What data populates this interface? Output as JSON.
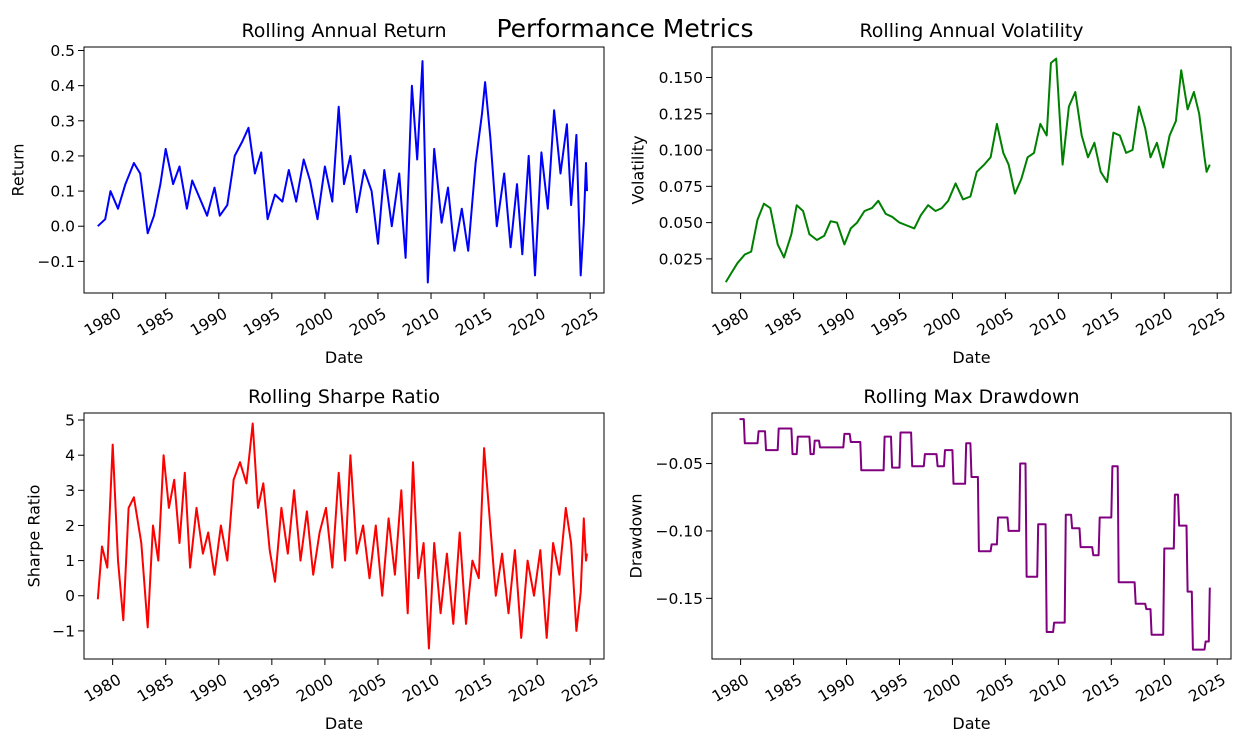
{
  "figure": {
    "title": "Performance Metrics"
  },
  "chart_data": [
    {
      "type": "line",
      "title": "Rolling Annual Return",
      "xlabel": "Date",
      "ylabel": "Return",
      "color": "#0000ff",
      "xlim": [
        1977.3,
        2026.3
      ],
      "ylim": [
        -0.19,
        0.51
      ],
      "xticks": [
        "1980",
        "1985",
        "1990",
        "1995",
        "2000",
        "2005",
        "2010",
        "2015",
        "2020",
        "2025"
      ],
      "yticks": [
        "−0.1",
        "0.0",
        "0.1",
        "0.2",
        "0.3",
        "0.4",
        "0.5"
      ],
      "series": [
        {
          "x": [
            1978.6,
            1979.3,
            1979.8,
            1980.5,
            1981.2,
            1982.0,
            1982.6,
            1983.3,
            1983.9,
            1984.5,
            1985.0,
            1985.7,
            1986.3,
            1987.0,
            1987.5,
            1988.2,
            1988.9,
            1989.6,
            1990.1,
            1990.8,
            1991.5,
            1992.2,
            1992.8,
            1993.4,
            1994.0,
            1994.6,
            1995.3,
            1996.0,
            1996.6,
            1997.3,
            1998.0,
            1998.6,
            1999.3,
            2000.0,
            2000.7,
            2001.3,
            2001.8,
            2002.4,
            2003.0,
            2003.7,
            2004.4,
            2005.0,
            2005.6,
            2006.3,
            2007.0,
            2007.6,
            2008.2,
            2008.7,
            2009.2,
            2009.7,
            2010.3,
            2011.0,
            2011.6,
            2012.2,
            2012.9,
            2013.5,
            2014.2,
            2014.8,
            2015.1,
            2015.6,
            2016.2,
            2016.9,
            2017.5,
            2018.1,
            2018.6,
            2019.2,
            2019.8,
            2020.4,
            2021.0,
            2021.6,
            2022.2,
            2022.8,
            2023.2,
            2023.7,
            2024.1,
            2024.4,
            2024.6,
            2024.7
          ],
          "y": [
            0.0,
            0.02,
            0.1,
            0.05,
            0.12,
            0.18,
            0.15,
            -0.02,
            0.03,
            0.12,
            0.22,
            0.12,
            0.17,
            0.05,
            0.13,
            0.08,
            0.03,
            0.11,
            0.03,
            0.06,
            0.2,
            0.24,
            0.28,
            0.15,
            0.21,
            0.02,
            0.09,
            0.07,
            0.16,
            0.07,
            0.19,
            0.13,
            0.02,
            0.17,
            0.07,
            0.34,
            0.12,
            0.2,
            0.04,
            0.16,
            0.1,
            -0.05,
            0.16,
            0.0,
            0.15,
            -0.09,
            0.4,
            0.19,
            0.47,
            -0.16,
            0.22,
            0.01,
            0.11,
            -0.07,
            0.05,
            -0.07,
            0.18,
            0.32,
            0.41,
            0.25,
            0.0,
            0.15,
            -0.06,
            0.12,
            -0.08,
            0.2,
            -0.14,
            0.21,
            0.05,
            0.33,
            0.15,
            0.29,
            0.06,
            0.26,
            -0.14,
            0.01,
            0.18,
            0.1
          ]
        }
      ]
    },
    {
      "type": "line",
      "title": "Rolling Annual Volatility",
      "xlabel": "Date",
      "ylabel": "Volatility",
      "color": "#008000",
      "xlim": [
        1977.3,
        2026.3
      ],
      "ylim": [
        0.0015,
        0.171
      ],
      "xticks": [
        "1980",
        "1985",
        "1990",
        "1995",
        "2000",
        "2005",
        "2010",
        "2015",
        "2020",
        "2025"
      ],
      "yticks": [
        "0.025",
        "0.050",
        "0.075",
        "0.100",
        "0.125",
        "0.150"
      ],
      "series": [
        {
          "x": [
            1978.6,
            1979.1,
            1979.7,
            1980.4,
            1981.0,
            1981.6,
            1982.2,
            1982.8,
            1983.5,
            1984.1,
            1984.8,
            1985.3,
            1985.9,
            1986.5,
            1987.2,
            1987.9,
            1988.5,
            1989.1,
            1989.8,
            1990.4,
            1991.0,
            1991.7,
            1992.4,
            1993.0,
            1993.7,
            1994.3,
            1995.0,
            1995.7,
            1996.4,
            1997.0,
            1997.7,
            1998.4,
            1999.0,
            1999.6,
            2000.3,
            2001.0,
            2001.7,
            2002.3,
            2003.0,
            2003.6,
            2004.2,
            2004.8,
            2005.3,
            2005.9,
            2006.5,
            2007.1,
            2007.7,
            2008.3,
            2008.9,
            2009.3,
            2009.8,
            2010.4,
            2011.0,
            2011.6,
            2012.2,
            2012.8,
            2013.4,
            2014.0,
            2014.6,
            2015.2,
            2015.8,
            2016.4,
            2017.0,
            2017.6,
            2018.2,
            2018.7,
            2019.3,
            2019.9,
            2020.5,
            2021.1,
            2021.6,
            2022.2,
            2022.8,
            2023.3,
            2023.8,
            2024.0,
            2024.3
          ],
          "y": [
            0.009,
            0.015,
            0.022,
            0.028,
            0.03,
            0.052,
            0.063,
            0.06,
            0.035,
            0.026,
            0.042,
            0.062,
            0.058,
            0.042,
            0.038,
            0.041,
            0.051,
            0.05,
            0.035,
            0.046,
            0.05,
            0.058,
            0.06,
            0.065,
            0.056,
            0.054,
            0.05,
            0.048,
            0.046,
            0.055,
            0.062,
            0.058,
            0.06,
            0.065,
            0.077,
            0.066,
            0.068,
            0.085,
            0.09,
            0.095,
            0.118,
            0.098,
            0.09,
            0.07,
            0.08,
            0.095,
            0.098,
            0.118,
            0.11,
            0.16,
            0.163,
            0.09,
            0.13,
            0.14,
            0.11,
            0.095,
            0.105,
            0.085,
            0.078,
            0.112,
            0.11,
            0.098,
            0.1,
            0.13,
            0.115,
            0.095,
            0.105,
            0.088,
            0.11,
            0.12,
            0.155,
            0.128,
            0.14,
            0.125,
            0.095,
            0.085,
            0.09
          ]
        }
      ]
    },
    {
      "type": "line",
      "title": "Rolling Sharpe Ratio",
      "xlabel": "Date",
      "ylabel": "Sharpe Ratio",
      "color": "#ff0000",
      "xlim": [
        1977.3,
        2026.3
      ],
      "ylim": [
        -1.8,
        5.2
      ],
      "xticks": [
        "1980",
        "1985",
        "1990",
        "1995",
        "2000",
        "2005",
        "2010",
        "2015",
        "2020",
        "2025"
      ],
      "yticks": [
        "−1",
        "0",
        "1",
        "2",
        "3",
        "4",
        "5"
      ],
      "series": [
        {
          "x": [
            1978.6,
            1979.0,
            1979.5,
            1980.0,
            1980.5,
            1981.0,
            1981.5,
            1982.0,
            1982.7,
            1983.3,
            1983.8,
            1984.3,
            1984.8,
            1985.3,
            1985.8,
            1986.3,
            1986.8,
            1987.3,
            1987.9,
            1988.5,
            1989.0,
            1989.6,
            1990.2,
            1990.8,
            1991.4,
            1992.0,
            1992.6,
            1993.2,
            1993.7,
            1994.2,
            1994.8,
            1995.3,
            1995.9,
            1996.5,
            1997.1,
            1997.7,
            1998.3,
            1998.9,
            1999.5,
            2000.1,
            2000.7,
            2001.3,
            2001.9,
            2002.4,
            2003.0,
            2003.6,
            2004.2,
            2004.8,
            2005.4,
            2006.0,
            2006.6,
            2007.2,
            2007.8,
            2008.3,
            2008.8,
            2009.3,
            2009.8,
            2010.3,
            2010.9,
            2011.5,
            2012.1,
            2012.7,
            2013.3,
            2013.9,
            2014.5,
            2015.0,
            2015.5,
            2016.1,
            2016.7,
            2017.3,
            2017.9,
            2018.5,
            2019.1,
            2019.7,
            2020.3,
            2020.9,
            2021.5,
            2022.1,
            2022.7,
            2023.2,
            2023.7,
            2024.1,
            2024.4,
            2024.6,
            2024.7
          ],
          "y": [
            -0.1,
            1.4,
            0.8,
            4.3,
            1.0,
            -0.7,
            2.5,
            2.8,
            1.5,
            -0.9,
            2.0,
            1.0,
            4.0,
            2.5,
            3.3,
            1.5,
            3.5,
            0.8,
            2.5,
            1.2,
            1.8,
            0.6,
            2.0,
            1.0,
            3.3,
            3.8,
            3.2,
            4.9,
            2.5,
            3.2,
            1.3,
            0.4,
            2.5,
            1.2,
            3.0,
            1.0,
            2.4,
            0.6,
            1.8,
            2.5,
            0.8,
            3.5,
            1.0,
            4.0,
            1.2,
            2.0,
            0.5,
            2.0,
            0.0,
            2.2,
            0.6,
            3.0,
            -0.5,
            3.8,
            0.5,
            1.5,
            -1.5,
            1.5,
            -0.5,
            1.2,
            -0.8,
            1.8,
            -0.8,
            1.0,
            0.5,
            4.2,
            2.3,
            0.0,
            1.2,
            -0.5,
            1.3,
            -1.2,
            1.0,
            0.0,
            1.3,
            -1.2,
            1.5,
            0.6,
            2.5,
            1.5,
            -1.0,
            0.1,
            2.2,
            1.0,
            1.2
          ]
        }
      ]
    },
    {
      "type": "line",
      "title": "Rolling Max Drawdown",
      "xlabel": "Date",
      "ylabel": "Drawdown",
      "color": "#800080",
      "xlim": [
        1977.3,
        2026.3
      ],
      "ylim": [
        -0.195,
        -0.0125
      ],
      "xticks": [
        "1980",
        "1985",
        "1990",
        "1995",
        "2000",
        "2005",
        "2010",
        "2015",
        "2020",
        "2025"
      ],
      "yticks": [
        "−0.15",
        "−0.10",
        "−0.05"
      ],
      "series": [
        {
          "x": [
            1979.9,
            1980.3,
            1980.4,
            1981.6,
            1981.7,
            1982.3,
            1982.4,
            1983.5,
            1983.6,
            1984.8,
            1984.9,
            1985.3,
            1985.4,
            1986.5,
            1986.6,
            1986.9,
            1987.0,
            1987.4,
            1987.5,
            1989.7,
            1989.8,
            1990.3,
            1990.4,
            1991.3,
            1991.4,
            1993.5,
            1993.6,
            1994.2,
            1994.3,
            1995.0,
            1995.1,
            1996.1,
            1996.2,
            1997.3,
            1997.4,
            1998.5,
            1998.6,
            1999.2,
            1999.3,
            2000.0,
            2000.1,
            2001.2,
            2001.3,
            2001.7,
            2001.8,
            2002.4,
            2002.5,
            2003.6,
            2003.7,
            2004.2,
            2004.3,
            2005.2,
            2005.3,
            2006.3,
            2006.4,
            2006.9,
            2007.0,
            2008.0,
            2008.1,
            2008.8,
            2008.9,
            2009.5,
            2009.6,
            2010.6,
            2010.7,
            2011.2,
            2011.3,
            2012.0,
            2012.1,
            2013.2,
            2013.3,
            2013.8,
            2013.9,
            2015.0,
            2015.1,
            2015.6,
            2015.7,
            2017.2,
            2017.3,
            2018.2,
            2018.3,
            2018.7,
            2018.8,
            2019.9,
            2020.0,
            2020.9,
            2021.0,
            2021.3,
            2021.4,
            2022.1,
            2022.2,
            2022.6,
            2022.7,
            2023.8,
            2023.9,
            2024.2,
            2024.3
          ],
          "y": [
            -0.017,
            -0.017,
            -0.035,
            -0.035,
            -0.026,
            -0.026,
            -0.04,
            -0.04,
            -0.024,
            -0.024,
            -0.043,
            -0.043,
            -0.03,
            -0.03,
            -0.043,
            -0.043,
            -0.033,
            -0.033,
            -0.038,
            -0.038,
            -0.028,
            -0.028,
            -0.034,
            -0.034,
            -0.055,
            -0.055,
            -0.03,
            -0.03,
            -0.053,
            -0.053,
            -0.027,
            -0.027,
            -0.052,
            -0.052,
            -0.043,
            -0.043,
            -0.052,
            -0.052,
            -0.04,
            -0.04,
            -0.065,
            -0.065,
            -0.035,
            -0.035,
            -0.06,
            -0.06,
            -0.115,
            -0.115,
            -0.11,
            -0.11,
            -0.09,
            -0.09,
            -0.1,
            -0.1,
            -0.05,
            -0.05,
            -0.134,
            -0.134,
            -0.095,
            -0.095,
            -0.175,
            -0.175,
            -0.168,
            -0.168,
            -0.088,
            -0.088,
            -0.098,
            -0.098,
            -0.112,
            -0.112,
            -0.118,
            -0.118,
            -0.09,
            -0.09,
            -0.052,
            -0.052,
            -0.138,
            -0.138,
            -0.154,
            -0.154,
            -0.158,
            -0.158,
            -0.177,
            -0.177,
            -0.113,
            -0.113,
            -0.073,
            -0.073,
            -0.096,
            -0.096,
            -0.145,
            -0.145,
            -0.188,
            -0.188,
            -0.182,
            -0.182,
            -0.142
          ]
        }
      ]
    }
  ]
}
